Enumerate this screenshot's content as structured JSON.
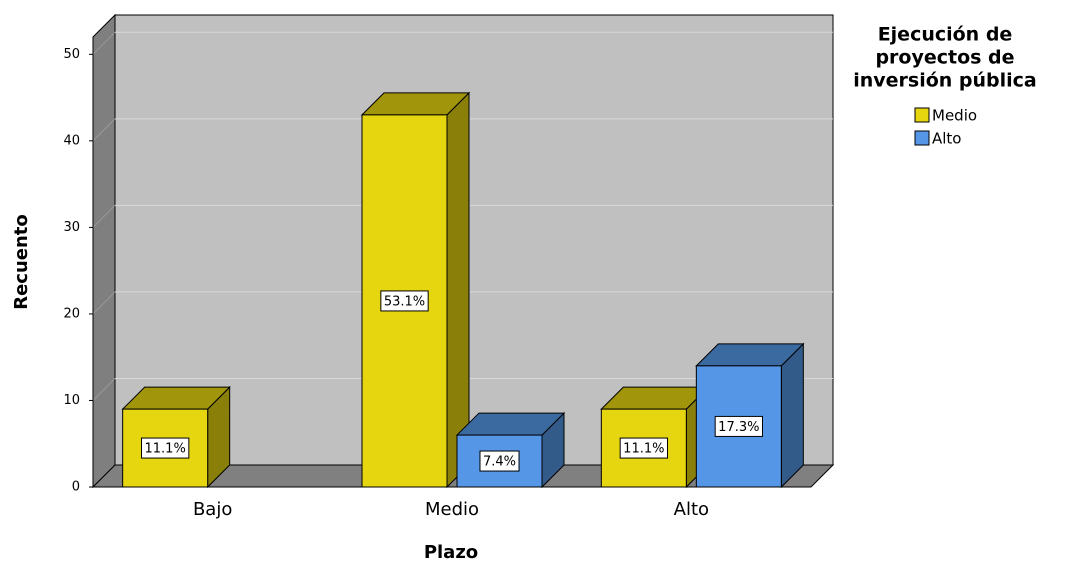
{
  "chart_data": {
    "type": "bar3d",
    "x_label": "Plazo",
    "y_label": "Recuento",
    "legend_title": [
      "Ejecución de",
      "proyectos de",
      "inversión pública"
    ],
    "categories": [
      "Bajo",
      "Medio",
      "Alto"
    ],
    "series": [
      {
        "name": "Medio",
        "color": "#e6d60f",
        "values": [
          9,
          43,
          9
        ],
        "data_labels": [
          "11.1%",
          "53.1%",
          "11.1%"
        ]
      },
      {
        "name": "Alto",
        "color": "#5597e6",
        "values": [
          null,
          6,
          14
        ],
        "data_labels": [
          null,
          "7.4%",
          "17.3%"
        ]
      }
    ],
    "ylim": [
      0,
      52
    ],
    "yticks": [
      0,
      10,
      20,
      30,
      40,
      50
    ],
    "grid": true,
    "legend": "right"
  }
}
